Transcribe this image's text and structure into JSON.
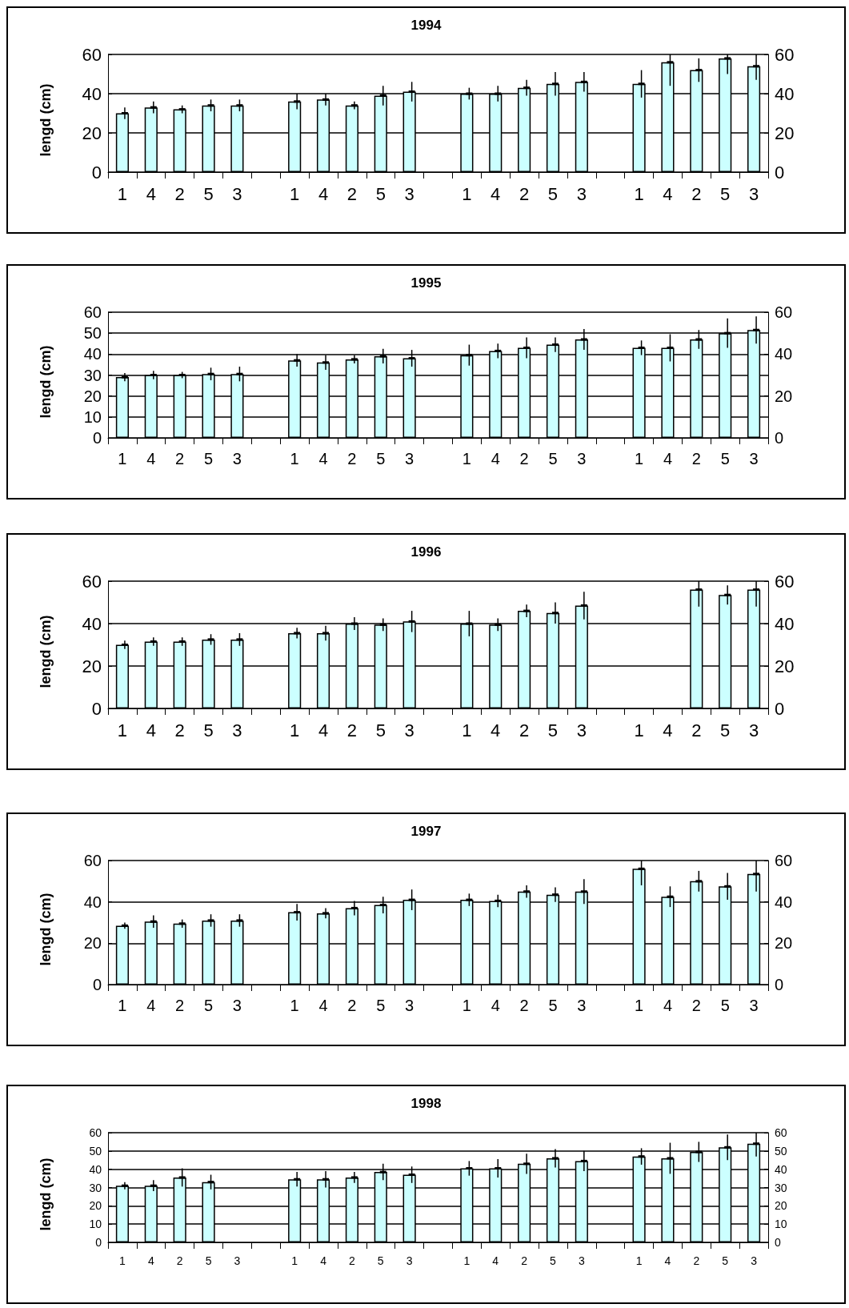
{
  "chart_data": [
    {
      "type": "bar",
      "title": "1994",
      "ylabel": "lengd (cm)",
      "categories": [
        "1",
        "4",
        "2",
        "5",
        "3",
        null,
        "1",
        "4",
        "2",
        "5",
        "3",
        null,
        "1",
        "4",
        "2",
        "5",
        "3",
        null,
        "1",
        "4",
        "2",
        "5",
        "3"
      ],
      "color": "#ccffff",
      "values": [
        30,
        33,
        32,
        34,
        34,
        null,
        36,
        37,
        34,
        39,
        41,
        null,
        40,
        40,
        43,
        45,
        46,
        null,
        45,
        56,
        52,
        58,
        54
      ],
      "errors": [
        3,
        3,
        2,
        3,
        3,
        null,
        4,
        3,
        2,
        5,
        5,
        null,
        3,
        4,
        4,
        6,
        5,
        null,
        7,
        [
          44,
          60
        ],
        6,
        [
          50,
          60
        ],
        [
          47,
          60
        ]
      ],
      "ylim": [
        0,
        60
      ],
      "yticks": [
        0,
        20,
        40,
        60
      ],
      "y2lim": [
        0,
        60
      ],
      "y2ticks": [
        0,
        20,
        40,
        60
      ],
      "grid": "y"
    },
    {
      "type": "bar",
      "title": "1995",
      "ylabel": "lengd (cm)",
      "categories": [
        "1",
        "4",
        "2",
        "5",
        "3",
        null,
        "1",
        "4",
        "2",
        "5",
        "3",
        null,
        "1",
        "4",
        "2",
        "5",
        "3",
        null,
        "1",
        "4",
        "2",
        "5",
        "3"
      ],
      "color": "#ccffff",
      "values": [
        29,
        30,
        30,
        30.5,
        30.5,
        null,
        37,
        36,
        37.5,
        39,
        38,
        null,
        39.5,
        41.5,
        43,
        44.5,
        47,
        null,
        43,
        43,
        47,
        50,
        51.5
      ],
      "errors": [
        2,
        2,
        1.5,
        3,
        3.5,
        null,
        3,
        3.5,
        2,
        3.5,
        4,
        null,
        5,
        3.5,
        5,
        3.5,
        5,
        null,
        3.5,
        6.5,
        4.5,
        7,
        6.5
      ],
      "ylim": [
        0,
        60
      ],
      "yticks": [
        0,
        10,
        20,
        30,
        40,
        50,
        60
      ],
      "y2lim": [
        0,
        60
      ],
      "y2ticks": [
        0,
        20,
        40,
        60
      ],
      "grid": "y"
    },
    {
      "type": "bar",
      "title": "1996",
      "ylabel": "lengd (cm)",
      "categories": [
        "1",
        "4",
        "2",
        "5",
        "3",
        null,
        "1",
        "4",
        "2",
        "5",
        "3",
        null,
        "1",
        "4",
        "2",
        "5",
        "3",
        null,
        "1",
        "4",
        "2",
        "5",
        "3"
      ],
      "color": "#ccffff",
      "values": [
        30,
        31.5,
        31.5,
        32.5,
        32.5,
        null,
        35.5,
        35.5,
        40,
        39.5,
        41,
        null,
        40,
        39.5,
        46,
        45,
        48.5,
        null,
        null,
        null,
        56,
        53.5,
        56
      ],
      "errors": [
        2,
        2,
        2,
        2.5,
        3,
        null,
        2.5,
        3.5,
        3,
        3,
        5,
        null,
        6,
        3,
        3,
        5,
        6.5,
        null,
        null,
        null,
        [
          48,
          60
        ],
        4.5,
        [
          48,
          60
        ]
      ],
      "ylim": [
        0,
        60
      ],
      "yticks": [
        0,
        20,
        40,
        60
      ],
      "y2lim": [
        0,
        60
      ],
      "y2ticks": [
        0,
        20,
        40,
        60
      ],
      "grid": "y"
    },
    {
      "type": "bar",
      "title": "1997",
      "ylabel": "lengd (cm)",
      "categories": [
        "1",
        "4",
        "2",
        "5",
        "3",
        null,
        "1",
        "4",
        "2",
        "5",
        "3",
        null,
        "1",
        "4",
        "2",
        "5",
        "3",
        null,
        "1",
        "4",
        "2",
        "5",
        "3"
      ],
      "color": "#ccffff",
      "values": [
        28.5,
        30.5,
        29.5,
        31,
        31,
        null,
        35,
        34.5,
        37,
        38.5,
        41,
        null,
        41,
        40.5,
        45,
        43.5,
        45,
        null,
        56,
        42.5,
        50,
        47.5,
        53.5
      ],
      "errors": [
        1.5,
        3,
        2,
        3,
        3,
        null,
        4,
        2.5,
        3.5,
        4,
        5,
        null,
        3,
        3,
        3,
        3.5,
        6,
        null,
        [
          48,
          60
        ],
        5,
        5,
        6.5,
        [
          45,
          60
        ]
      ],
      "ylim": [
        0,
        60
      ],
      "yticks": [
        0,
        20,
        40,
        60
      ],
      "y2lim": [
        0,
        60
      ],
      "y2ticks": [
        0,
        20,
        40,
        60
      ],
      "grid": "y"
    },
    {
      "type": "bar",
      "title": "1998",
      "ylabel": "lengd (cm)",
      "categories": [
        "1",
        "4",
        "2",
        "5",
        "3",
        null,
        "1",
        "4",
        "2",
        "5",
        "3",
        null,
        "1",
        "4",
        "2",
        "5",
        "3",
        null,
        "1",
        "4",
        "2",
        "5",
        "3"
      ],
      "color": "#ccffff",
      "values": [
        31,
        31,
        35.5,
        33,
        null,
        null,
        34.5,
        34.5,
        35.5,
        38.5,
        37,
        null,
        40.5,
        40.5,
        43,
        46,
        44.5,
        null,
        47,
        46,
        49.5,
        52,
        54
      ],
      "errors": [
        2,
        3,
        5,
        4,
        null,
        null,
        4,
        4.5,
        3,
        4.5,
        4.5,
        null,
        4,
        5,
        5.5,
        5,
        5.5,
        null,
        4.5,
        8.5,
        5.5,
        7,
        [
          47,
          60
        ]
      ],
      "ylim": [
        0,
        60
      ],
      "yticks": [
        0,
        10,
        20,
        30,
        40,
        50,
        60
      ],
      "y2lim": [
        0,
        60
      ],
      "y2ticks": [
        0,
        10,
        20,
        30,
        40,
        50,
        60
      ],
      "grid": "y"
    }
  ]
}
